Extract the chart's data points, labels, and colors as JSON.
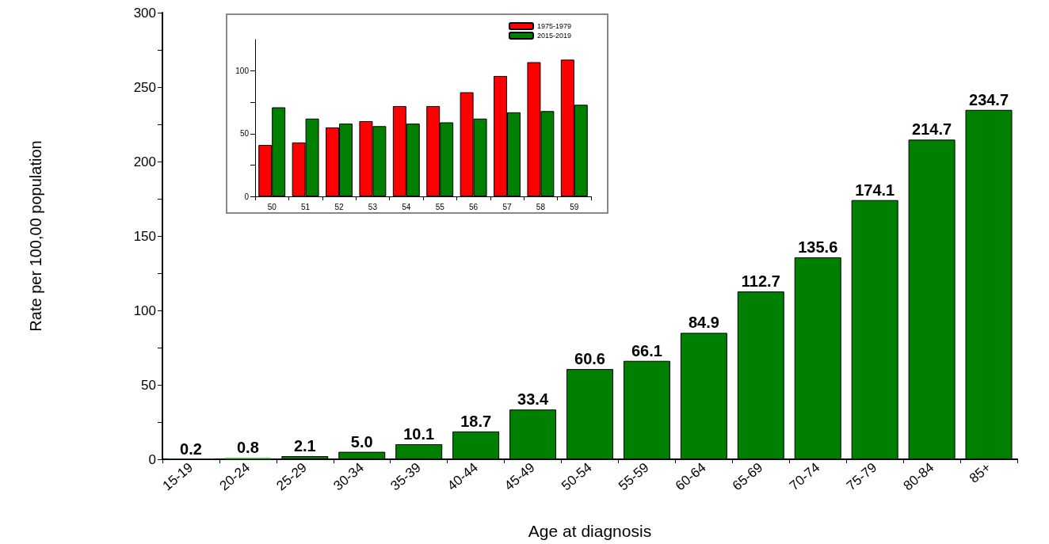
{
  "chart_data": [
    {
      "type": "bar",
      "xlabel": "Age at diagnosis",
      "ylabel": "Rate per 100,00 population",
      "categories": [
        "15-19",
        "20-24",
        "25-29",
        "30-34",
        "35-39",
        "40-44",
        "45-49",
        "50-54",
        "55-59",
        "60-64",
        "65-69",
        "70-74",
        "75-79",
        "80-84",
        "85+"
      ],
      "values": [
        0.2,
        0.8,
        2.1,
        5.0,
        10.1,
        18.7,
        33.4,
        60.6,
        66.1,
        84.9,
        112.7,
        135.6,
        174.1,
        214.7,
        234.7
      ],
      "value_labels": [
        "0.2",
        "0.8",
        "2.1",
        "5.0",
        "10.1",
        "18.7",
        "33.4",
        "60.6",
        "66.1",
        "84.9",
        "112.7",
        "135.6",
        "174.1",
        "214.7",
        "234.7"
      ],
      "color": "#008000",
      "ylim": [
        0,
        300
      ],
      "yticks": [
        0,
        {
          "value": 25,
          "label": null
        },
        50,
        {
          "value": 75,
          "label": null
        },
        100,
        {
          "value": 125,
          "label": null
        },
        150,
        {
          "value": 175,
          "label": null
        },
        200,
        {
          "value": 225,
          "label": null
        },
        250,
        {
          "value": 275,
          "label": null
        },
        300
      ],
      "grid": false,
      "legend": false
    },
    {
      "type": "bar",
      "categories": [
        "50",
        "51",
        "52",
        "53",
        "54",
        "55",
        "56",
        "57",
        "58",
        "59"
      ],
      "series": [
        {
          "name": "1975-1979",
          "color": "#ff0000",
          "values": [
            41,
            43,
            55,
            60,
            72,
            72,
            83,
            96,
            107,
            109
          ]
        },
        {
          "name": "2015-2019",
          "color": "#008000",
          "values": [
            71,
            62,
            58,
            56,
            58,
            59,
            62,
            67,
            68,
            73
          ]
        }
      ],
      "ylim": [
        0,
        125
      ],
      "yticks": [
        0,
        {
          "value": 25,
          "label": null
        },
        50,
        {
          "value": 75,
          "label": null
        },
        100
      ],
      "grid": false,
      "legend": "top right"
    }
  ]
}
